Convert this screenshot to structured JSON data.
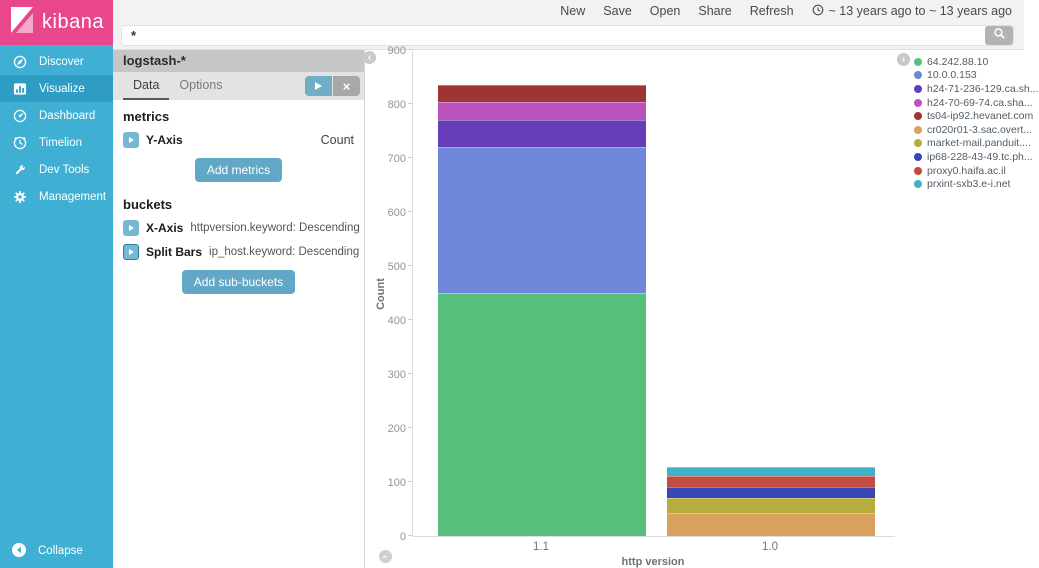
{
  "branding": {
    "app_name": "kibana",
    "logo_icon": "kibana-logo-icon"
  },
  "topnav": {
    "items": [
      "New",
      "Save",
      "Open",
      "Share",
      "Refresh"
    ],
    "time_icon": "clock-icon",
    "time_range": "~ 13 years ago to ~ 13 years ago"
  },
  "search": {
    "value": "*",
    "button_icon": "search-icon"
  },
  "sidebar": {
    "items": [
      {
        "label": "Discover",
        "icon": "compass-icon",
        "active": false
      },
      {
        "label": "Visualize",
        "icon": "bar-chart-icon",
        "active": true
      },
      {
        "label": "Dashboard",
        "icon": "dashboard-icon",
        "active": false
      },
      {
        "label": "Timelion",
        "icon": "timelion-icon",
        "active": false
      },
      {
        "label": "Dev Tools",
        "icon": "wrench-icon",
        "active": false
      },
      {
        "label": "Management",
        "icon": "gear-icon",
        "active": false
      }
    ],
    "collapse_label": "Collapse"
  },
  "editor": {
    "index_pattern": "logstash-*",
    "tabs": [
      {
        "label": "Data",
        "active": true
      },
      {
        "label": "Options",
        "active": false
      }
    ],
    "metrics": {
      "header": "metrics",
      "rows": [
        {
          "label": "Y-Axis",
          "value": "Count"
        }
      ],
      "add_button": "Add metrics"
    },
    "buckets": {
      "header": "buckets",
      "rows": [
        {
          "label": "X-Axis",
          "param": "httpversion.keyword: Descending"
        },
        {
          "label": "Split Bars",
          "param": "ip_host.keyword: Descending"
        }
      ],
      "add_button": "Add sub-buckets"
    }
  },
  "colors": {
    "brand_pink": "#e8478b",
    "sidebar_teal": "#3fb0d4",
    "sidebar_active": "#2f9dc3",
    "button_teal": "#62a7c6",
    "danger_red": "#e5504a"
  },
  "chart_data": {
    "type": "bar",
    "stacked": true,
    "categories": [
      "1.1",
      "1.0"
    ],
    "series": [
      {
        "name": "64.242.88.10",
        "color": "#57c17b",
        "values": [
          450,
          0
        ]
      },
      {
        "name": "10.0.0.153",
        "color": "#6f87d8",
        "values": [
          270,
          0
        ]
      },
      {
        "name": "h24-71-236-129.ca.sh...",
        "color": "#663db8",
        "values": [
          50,
          0
        ]
      },
      {
        "name": "h24-70-69-74.ca.sha...",
        "color": "#bc52bc",
        "values": [
          34,
          0
        ]
      },
      {
        "name": "ts04-ip92.hevanet.com",
        "color": "#9e3533",
        "values": [
          31,
          0
        ]
      },
      {
        "name": "cr020r01-3.sac.overt...",
        "color": "#daa05d",
        "values": [
          0,
          43
        ]
      },
      {
        "name": "market-mail.panduit....",
        "color": "#b6ad3d",
        "values": [
          0,
          28
        ]
      },
      {
        "name": "ip68-228-43-49.tc.ph...",
        "color": "#3a46b4",
        "values": [
          0,
          19
        ]
      },
      {
        "name": "proxy0.haifa.ac.il",
        "color": "#c24c3f",
        "values": [
          0,
          21
        ]
      },
      {
        "name": "prxint-sxb3.e-i.net",
        "color": "#40b2c5",
        "values": [
          0,
          17
        ]
      }
    ],
    "title": "",
    "xlabel": "http version",
    "ylabel": "Count",
    "ylim": [
      0,
      900
    ],
    "ytick_step": 100,
    "legend_position": "right",
    "grid": false
  }
}
